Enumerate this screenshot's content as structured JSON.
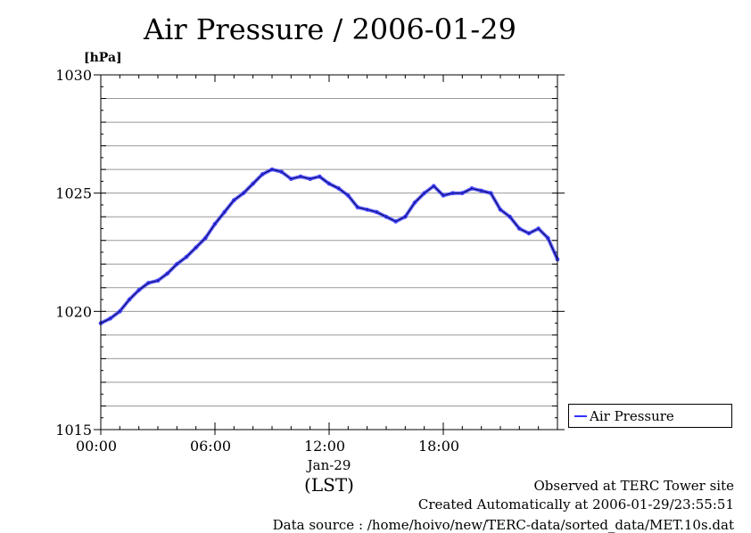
{
  "chart_data": {
    "type": "line",
    "title": "Air Pressure / 2006-01-29",
    "ylabel": "[hPa]",
    "xlabel": "(LST)",
    "date_label": "Jan-29",
    "ylim": [
      1015,
      1030
    ],
    "yticks": [
      1015,
      1020,
      1025,
      1030
    ],
    "xlim": [
      0,
      24
    ],
    "xticks": [
      0,
      6,
      12,
      18
    ],
    "xtick_labels": [
      "00:00",
      "06:00",
      "12:00",
      "18:00"
    ],
    "grid": true,
    "legend_position": "right",
    "series": [
      {
        "name": "Air Pressure",
        "color": "#3333ff",
        "x": [
          0,
          0.5,
          1,
          1.5,
          2,
          2.5,
          3,
          3.5,
          4,
          4.5,
          5,
          5.5,
          6,
          6.5,
          7,
          7.5,
          8,
          8.5,
          9,
          9.5,
          10,
          10.5,
          11,
          11.5,
          12,
          12.5,
          13,
          13.5,
          14,
          14.5,
          15,
          15.5,
          16,
          16.5,
          17,
          17.5,
          18,
          18.5,
          19,
          19.5,
          20,
          20.5,
          21,
          21.5,
          22,
          22.5,
          23,
          23.5,
          24
        ],
        "y": [
          1019.5,
          1019.7,
          1020.0,
          1020.5,
          1020.9,
          1021.2,
          1021.3,
          1021.6,
          1022.0,
          1022.3,
          1022.7,
          1023.1,
          1023.7,
          1024.2,
          1024.7,
          1025.0,
          1025.4,
          1025.8,
          1026.0,
          1025.9,
          1025.6,
          1025.7,
          1025.6,
          1025.7,
          1025.4,
          1025.2,
          1024.9,
          1024.4,
          1024.3,
          1024.2,
          1024.0,
          1023.8,
          1024.0,
          1024.6,
          1025.0,
          1025.3,
          1024.9,
          1025.0,
          1025.0,
          1025.2,
          1025.1,
          1025.0,
          1024.3,
          1024.0,
          1023.5,
          1023.3,
          1023.5,
          1023.1,
          1022.2
        ]
      }
    ]
  },
  "footer": {
    "line1": "Observed at TERC Tower site",
    "line2": "Created Automatically at 2006-01-29/23:55:51",
    "line3": "Data source : /home/hoivo/new/TERC-data/sorted_data/MET.10s.dat"
  }
}
